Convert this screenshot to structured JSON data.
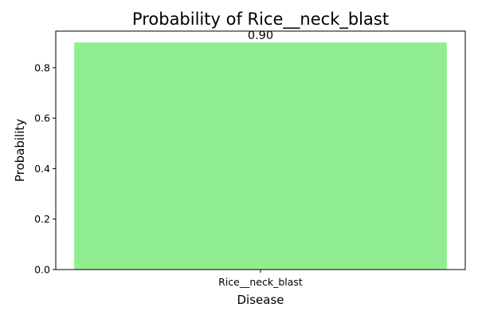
{
  "chart_data": {
    "type": "bar",
    "title": "Probability of Rice__neck_blast",
    "xlabel": "Disease",
    "ylabel": "Probability",
    "categories": [
      "Rice__neck_blast"
    ],
    "values": [
      0.9
    ],
    "data_labels": [
      "0.90"
    ],
    "ylim": [
      0,
      0.945
    ],
    "yticks": [
      0.0,
      0.2,
      0.4,
      0.6,
      0.8
    ],
    "ytick_labels": [
      "0.0",
      "0.2",
      "0.4",
      "0.6",
      "0.8"
    ],
    "grid": false,
    "bar_color": "#90ee90"
  }
}
